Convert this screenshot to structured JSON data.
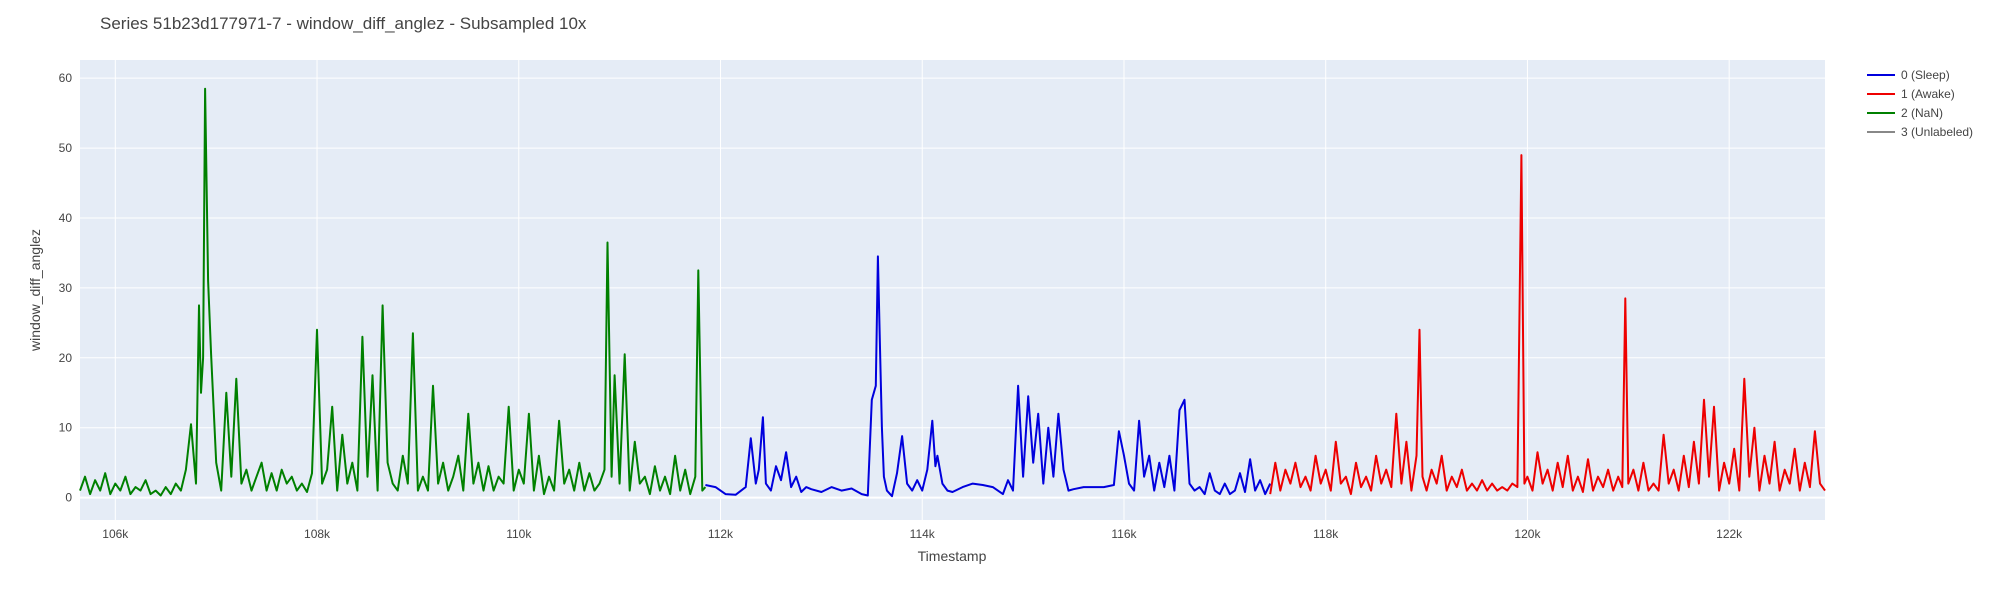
{
  "chart_data": {
    "type": "line",
    "title": "Series 51b23d177971-7 - window_diff_anglez - Subsampled 10x",
    "xlabel": "Timestamp",
    "ylabel": "window_diff_anglez",
    "xlim": [
      105650,
      122950
    ],
    "ylim": [
      -3.2,
      62.6
    ],
    "x_ticks": [
      106000,
      108000,
      110000,
      112000,
      114000,
      116000,
      118000,
      120000,
      122000
    ],
    "x_tick_labels": [
      "106k",
      "108k",
      "110k",
      "112k",
      "114k",
      "116k",
      "118k",
      "120k",
      "122k"
    ],
    "y_ticks": [
      0,
      10,
      20,
      30,
      40,
      50,
      60
    ],
    "y_tick_labels": [
      "0",
      "10",
      "20",
      "30",
      "40",
      "50",
      "60"
    ],
    "grid": true,
    "legend_position": "right",
    "series": [
      {
        "name": "0 (Sleep)",
        "color": "#0000dd",
        "x": [
          111850,
          111950,
          112050,
          112150,
          112250,
          112300,
          112350,
          112380,
          112420,
          112450,
          112500,
          112550,
          112600,
          112650,
          112700,
          112750,
          112800,
          112850,
          112900,
          113000,
          113100,
          113200,
          113300,
          113400,
          113460,
          113500,
          113540,
          113560,
          113580,
          113600,
          113620,
          113650,
          113700,
          113750,
          113800,
          113850,
          113900,
          113950,
          114000,
          114050,
          114100,
          114130,
          114150,
          114200,
          114250,
          114300,
          114400,
          114500,
          114600,
          114700,
          114800,
          114850,
          114900,
          114950,
          115000,
          115050,
          115100,
          115150,
          115200,
          115250,
          115300,
          115350,
          115400,
          115450,
          115500,
          115600,
          115700,
          115800,
          115900,
          115950,
          116000,
          116050,
          116100,
          116150,
          116200,
          116250,
          116300,
          116350,
          116400,
          116450,
          116500,
          116550,
          116600,
          116650,
          116700,
          116750,
          116800,
          116850,
          116900,
          116950,
          117000,
          117050,
          117100,
          117150,
          117200,
          117250,
          117300,
          117350,
          117400,
          117450
        ],
        "y": [
          1.8,
          1.5,
          0.5,
          0.4,
          1.5,
          8.5,
          2.0,
          4.0,
          11.5,
          2.0,
          1.0,
          4.5,
          2.5,
          6.5,
          1.5,
          3.0,
          0.8,
          1.5,
          1.2,
          0.8,
          1.5,
          1.0,
          1.3,
          0.5,
          0.3,
          14.0,
          16.0,
          34.5,
          22.0,
          10.0,
          3.0,
          1.0,
          0.2,
          3.5,
          8.8,
          2.0,
          1.0,
          2.5,
          1.0,
          4.0,
          11.0,
          4.5,
          6.0,
          2.0,
          1.0,
          0.8,
          1.5,
          2.0,
          1.8,
          1.5,
          0.5,
          2.5,
          1.0,
          16.0,
          3.0,
          14.5,
          5.0,
          12.0,
          2.0,
          10.0,
          3.0,
          12.0,
          4.0,
          1.0,
          1.2,
          1.5,
          1.5,
          1.5,
          1.8,
          9.5,
          6.0,
          2.0,
          1.0,
          11.0,
          3.0,
          6.0,
          1.0,
          5.0,
          1.5,
          6.0,
          1.0,
          12.5,
          14.0,
          2.0,
          1.0,
          1.5,
          0.5,
          3.5,
          1.0,
          0.5,
          2.0,
          0.5,
          1.0,
          3.5,
          0.8,
          5.5,
          1.0,
          2.5,
          0.5,
          2.0
        ]
      },
      {
        "name": "1 (Awake)",
        "color": "#ee0000",
        "x": [
          117450,
          117500,
          117550,
          117600,
          117650,
          117700,
          117750,
          117800,
          117850,
          117900,
          117950,
          118000,
          118050,
          118100,
          118150,
          118200,
          118250,
          118300,
          118350,
          118400,
          118450,
          118500,
          118550,
          118600,
          118650,
          118700,
          118750,
          118800,
          118850,
          118900,
          118930,
          118960,
          119000,
          119050,
          119100,
          119150,
          119200,
          119250,
          119300,
          119350,
          119400,
          119450,
          119500,
          119550,
          119600,
          119650,
          119700,
          119750,
          119800,
          119850,
          119900,
          119940,
          119970,
          120000,
          120050,
          120100,
          120150,
          120200,
          120250,
          120300,
          120350,
          120400,
          120450,
          120500,
          120550,
          120600,
          120650,
          120700,
          120750,
          120800,
          120850,
          120900,
          120940,
          120970,
          121000,
          121050,
          121100,
          121150,
          121200,
          121250,
          121300,
          121350,
          121400,
          121450,
          121500,
          121550,
          121600,
          121650,
          121700,
          121750,
          121800,
          121850,
          121900,
          121950,
          122000,
          122050,
          122100,
          122150,
          122200,
          122250,
          122300,
          122350,
          122400,
          122450,
          122500,
          122550,
          122600,
          122650,
          122700,
          122750,
          122800,
          122850,
          122900,
          122950
        ],
        "y": [
          0.5,
          5.0,
          1.0,
          4.0,
          2.0,
          5.0,
          1.5,
          3.0,
          1.0,
          6.0,
          2.0,
          4.0,
          1.0,
          8.0,
          2.0,
          3.0,
          0.5,
          5.0,
          1.5,
          3.0,
          1.0,
          6.0,
          2.0,
          4.0,
          1.5,
          12.0,
          2.0,
          8.0,
          1.0,
          6.0,
          24.0,
          3.0,
          1.0,
          4.0,
          2.0,
          6.0,
          1.0,
          3.0,
          1.5,
          4.0,
          1.0,
          2.0,
          1.0,
          2.5,
          1.0,
          2.0,
          1.0,
          1.5,
          1.0,
          2.0,
          1.5,
          49.0,
          2.0,
          3.0,
          1.0,
          6.5,
          2.0,
          4.0,
          1.0,
          5.0,
          1.5,
          6.0,
          1.0,
          3.0,
          0.8,
          5.5,
          1.0,
          3.0,
          1.5,
          4.0,
          1.0,
          3.0,
          1.5,
          28.5,
          2.0,
          4.0,
          1.0,
          5.0,
          1.0,
          2.0,
          1.0,
          9.0,
          2.0,
          4.0,
          1.0,
          6.0,
          1.5,
          8.0,
          2.0,
          14.0,
          3.0,
          13.0,
          1.0,
          5.0,
          2.0,
          7.0,
          1.0,
          17.0,
          3.0,
          10.0,
          1.0,
          6.0,
          2.0,
          8.0,
          1.0,
          4.0,
          2.0,
          7.0,
          1.0,
          5.0,
          1.5,
          9.5,
          2.0,
          1.0
        ]
      },
      {
        "name": "2 (NaN)",
        "color": "#008000",
        "x": [
          105650,
          105700,
          105750,
          105800,
          105850,
          105900,
          105950,
          106000,
          106050,
          106100,
          106150,
          106200,
          106250,
          106300,
          106350,
          106400,
          106450,
          106500,
          106550,
          106600,
          106650,
          106700,
          106750,
          106800,
          106830,
          106850,
          106870,
          106890,
          106920,
          106950,
          107000,
          107050,
          107100,
          107150,
          107200,
          107250,
          107300,
          107350,
          107400,
          107450,
          107500,
          107550,
          107600,
          107650,
          107700,
          107750,
          107800,
          107850,
          107900,
          107950,
          108000,
          108050,
          108100,
          108150,
          108200,
          108250,
          108300,
          108350,
          108400,
          108450,
          108500,
          108550,
          108600,
          108650,
          108700,
          108750,
          108800,
          108850,
          108900,
          108950,
          109000,
          109050,
          109100,
          109150,
          109200,
          109250,
          109300,
          109350,
          109400,
          109450,
          109500,
          109550,
          109600,
          109650,
          109700,
          109750,
          109800,
          109850,
          109900,
          109950,
          110000,
          110050,
          110100,
          110150,
          110200,
          110250,
          110300,
          110350,
          110400,
          110450,
          110500,
          110550,
          110600,
          110650,
          110700,
          110750,
          110800,
          110850,
          110880,
          110920,
          110950,
          111000,
          111050,
          111100,
          111150,
          111200,
          111250,
          111300,
          111350,
          111400,
          111450,
          111500,
          111550,
          111600,
          111650,
          111700,
          111750,
          111780,
          111820,
          111850
        ],
        "y": [
          1.0,
          3.0,
          0.5,
          2.5,
          1.0,
          3.5,
          0.5,
          2.0,
          1.0,
          3.0,
          0.5,
          1.5,
          1.0,
          2.5,
          0.5,
          1.0,
          0.3,
          1.5,
          0.5,
          2.0,
          1.0,
          4.0,
          10.5,
          2.0,
          27.5,
          15.0,
          20.0,
          58.5,
          31.0,
          20.5,
          5.0,
          1.0,
          15.0,
          3.0,
          17.0,
          2.0,
          4.0,
          1.0,
          3.0,
          5.0,
          1.0,
          3.5,
          1.0,
          4.0,
          2.0,
          3.0,
          1.0,
          2.0,
          0.8,
          3.5,
          24.0,
          2.0,
          4.0,
          13.0,
          1.0,
          9.0,
          2.0,
          5.0,
          1.0,
          23.0,
          3.0,
          17.5,
          1.0,
          27.5,
          5.0,
          2.0,
          1.0,
          6.0,
          2.0,
          23.5,
          1.0,
          3.0,
          1.0,
          16.0,
          2.0,
          5.0,
          1.0,
          3.0,
          6.0,
          1.0,
          12.0,
          2.0,
          5.0,
          1.0,
          4.5,
          1.0,
          3.0,
          2.0,
          13.0,
          1.0,
          4.0,
          2.0,
          12.0,
          1.0,
          6.0,
          0.5,
          3.0,
          1.0,
          11.0,
          2.0,
          4.0,
          1.0,
          5.0,
          1.0,
          3.5,
          1.0,
          2.0,
          4.0,
          36.5,
          3.0,
          17.5,
          2.0,
          20.5,
          1.0,
          8.0,
          2.0,
          3.0,
          0.5,
          4.5,
          1.0,
          3.0,
          0.5,
          6.0,
          1.0,
          4.0,
          0.5,
          3.0,
          32.5,
          1.0,
          1.5
        ]
      },
      {
        "name": "3 (Unlabeled)",
        "color": "#888888",
        "x": [],
        "y": []
      }
    ]
  }
}
